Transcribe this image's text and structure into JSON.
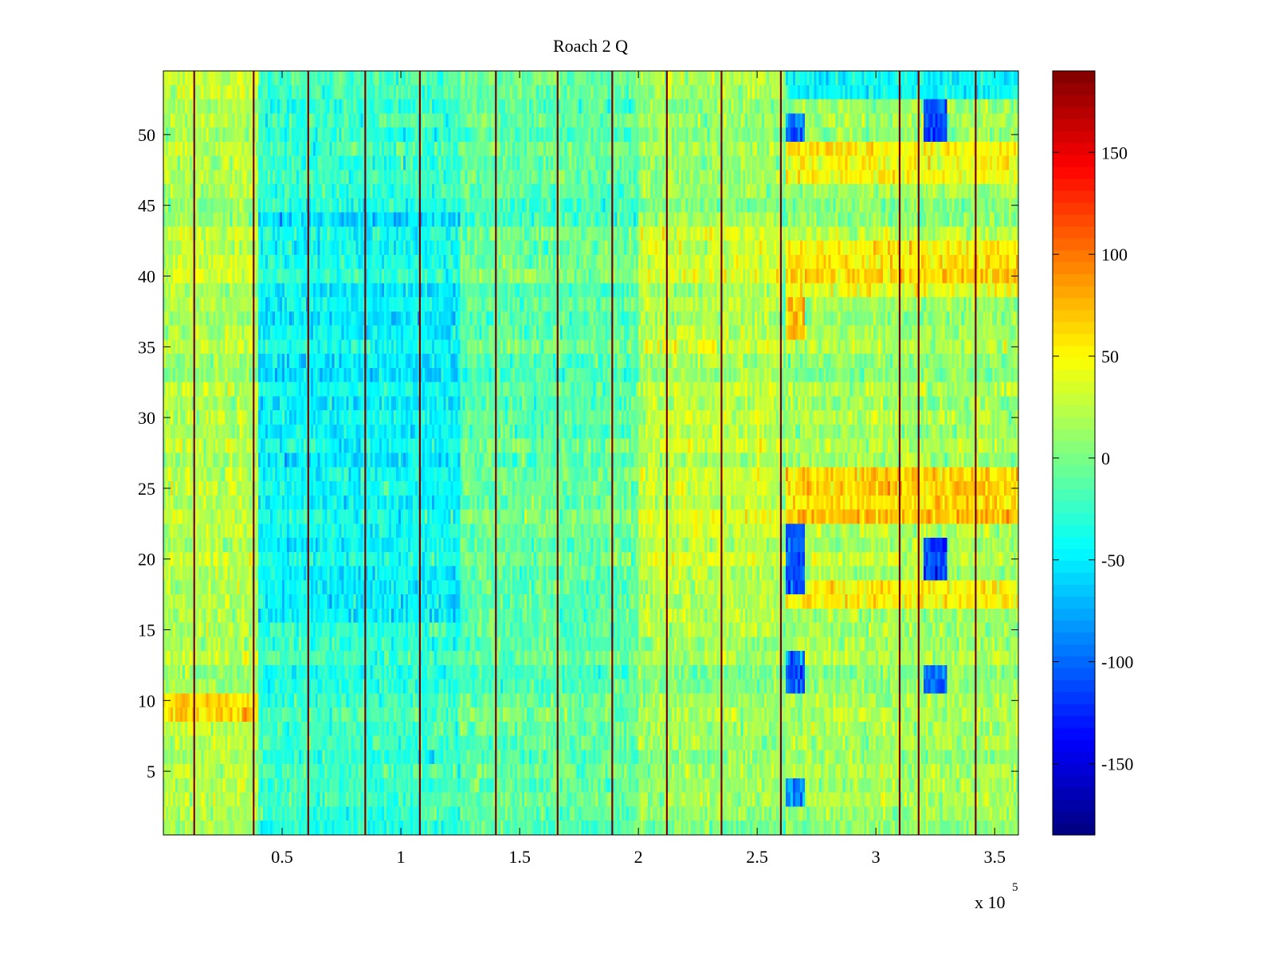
{
  "chart_data": {
    "type": "heatmap",
    "title": "Roach 2 Q",
    "xlabel": "",
    "ylabel": "",
    "xlim": [
      0,
      360000
    ],
    "ylim": [
      0.5,
      54.5
    ],
    "x_exponent_label": "x 10",
    "x_exponent_power": "5",
    "x_ticks": [
      {
        "value": 50000,
        "label": "0.5"
      },
      {
        "value": 100000,
        "label": "1"
      },
      {
        "value": 150000,
        "label": "1.5"
      },
      {
        "value": 200000,
        "label": "2"
      },
      {
        "value": 250000,
        "label": "2.5"
      },
      {
        "value": 300000,
        "label": "3"
      },
      {
        "value": 350000,
        "label": "3.5"
      }
    ],
    "y_ticks": [
      {
        "value": 5,
        "label": "5"
      },
      {
        "value": 10,
        "label": "10"
      },
      {
        "value": 15,
        "label": "15"
      },
      {
        "value": 20,
        "label": "20"
      },
      {
        "value": 25,
        "label": "25"
      },
      {
        "value": 30,
        "label": "30"
      },
      {
        "value": 35,
        "label": "35"
      },
      {
        "value": 40,
        "label": "40"
      },
      {
        "value": 45,
        "label": "45"
      },
      {
        "value": 50,
        "label": "50"
      }
    ],
    "colorbar": {
      "colormap": "jet",
      "range": [
        -185,
        190
      ],
      "ticks": [
        {
          "value": 150,
          "label": "150"
        },
        {
          "value": 100,
          "label": "100"
        },
        {
          "value": 50,
          "label": "50"
        },
        {
          "value": 0,
          "label": "0"
        },
        {
          "value": -50,
          "label": "-50"
        },
        {
          "value": -100,
          "label": "-100"
        },
        {
          "value": -150,
          "label": "-150"
        }
      ]
    },
    "vertical_lines": [
      13000,
      38000,
      61000,
      85000,
      108000,
      140000,
      166000,
      189000,
      212000,
      235000,
      260000,
      310000,
      318000,
      342000
    ],
    "rows": 54,
    "x_bins": 360,
    "regions": [
      {
        "x": [
          0,
          40000
        ],
        "y": [
          8,
          10
        ],
        "value": 60
      },
      {
        "x": [
          0,
          40000
        ],
        "y": [
          0,
          54
        ],
        "value": 20
      },
      {
        "x": [
          40000,
          125000
        ],
        "y": [
          15,
          44
        ],
        "value": -45
      },
      {
        "x": [
          40000,
          125000
        ],
        "y": [
          0,
          54
        ],
        "value": -25
      },
      {
        "x": [
          125000,
          200000
        ],
        "y": [
          0,
          54
        ],
        "value": -10
      },
      {
        "x": [
          200000,
          260000
        ],
        "y": [
          14,
          44
        ],
        "value": 25
      },
      {
        "x": [
          200000,
          260000
        ],
        "y": [
          0,
          54
        ],
        "value": 10
      },
      {
        "x": [
          262000,
          270000
        ],
        "y": [
          17,
          22
        ],
        "value": -110
      },
      {
        "x": [
          262000,
          270000
        ],
        "y": [
          10,
          13
        ],
        "value": -95
      },
      {
        "x": [
          262000,
          270000
        ],
        "y": [
          49,
          51
        ],
        "value": -95
      },
      {
        "x": [
          262000,
          270000
        ],
        "y": [
          2,
          4
        ],
        "value": -90
      },
      {
        "x": [
          262000,
          270000
        ],
        "y": [
          35,
          38
        ],
        "value": 70
      },
      {
        "x": [
          320000,
          330000
        ],
        "y": [
          18,
          21
        ],
        "value": -120
      },
      {
        "x": [
          320000,
          330000
        ],
        "y": [
          10,
          12
        ],
        "value": -90
      },
      {
        "x": [
          320000,
          330000
        ],
        "y": [
          49,
          52
        ],
        "value": -110
      },
      {
        "x": [
          262000,
          360000
        ],
        "y": [
          22,
          26
        ],
        "value": 60
      },
      {
        "x": [
          262000,
          360000
        ],
        "y": [
          16,
          18
        ],
        "value": 55
      },
      {
        "x": [
          262000,
          360000
        ],
        "y": [
          38,
          42
        ],
        "value": 50
      },
      {
        "x": [
          262000,
          360000
        ],
        "y": [
          46,
          49
        ],
        "value": 45
      },
      {
        "x": [
          262000,
          360000
        ],
        "y": [
          52,
          54
        ],
        "value": -50
      },
      {
        "x": [
          262000,
          360000
        ],
        "y": [
          0,
          54
        ],
        "value": 15
      }
    ]
  }
}
